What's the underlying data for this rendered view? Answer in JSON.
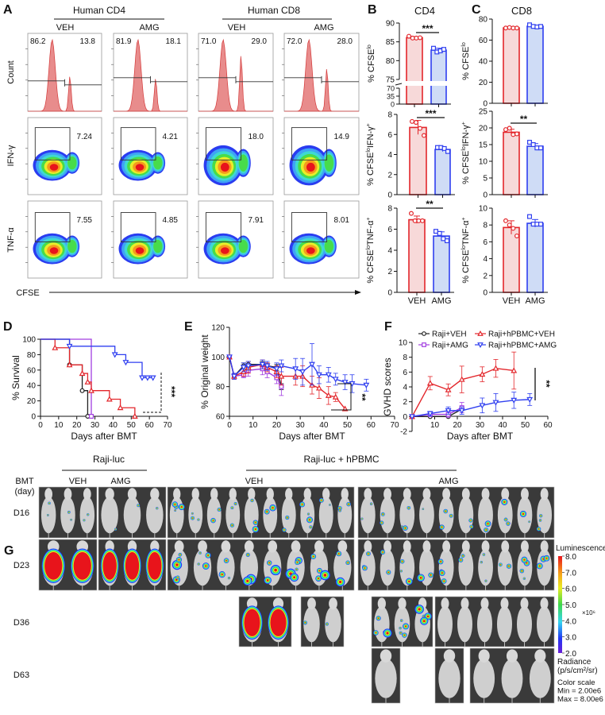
{
  "panel_letters": {
    "A": "A",
    "B": "B",
    "C": "C",
    "D": "D",
    "E": "E",
    "F": "F",
    "G": "G"
  },
  "panel_a": {
    "groups": [
      "Human CD4",
      "Human CD8"
    ],
    "conditions": [
      "VEH",
      "AMG",
      "VEH",
      "AMG"
    ],
    "row_labels": [
      "Count",
      "IFN-γ",
      "TNF-α"
    ],
    "x_axis_label": "CFSE",
    "histogram_gates": [
      [
        "86.2",
        "13.8"
      ],
      [
        "81.9",
        "18.1"
      ],
      [
        "71.0",
        "29.0"
      ],
      [
        "72.0",
        "28.0"
      ]
    ],
    "ifng_gates": [
      "7.24",
      "4.21",
      "18.0",
      "14.9"
    ],
    "tnfa_gates": [
      "7.55",
      "4.85",
      "7.91",
      "8.01"
    ]
  },
  "panel_b": {
    "title": "CD4"
  },
  "panel_c": {
    "title": "CD8"
  },
  "colors": {
    "veh_red": "#e3262b",
    "veh_fill": "#f7d9d9",
    "amg_blue": "#2f3ff0",
    "amg_fill": "#cfdcf6",
    "purple": "#a23fe0",
    "black": "#222222"
  },
  "chart_data": [
    {
      "type": "bar",
      "panel": "B",
      "categories": [
        "VEH",
        "AMG"
      ],
      "values": [
        86.1,
        82.8
      ],
      "sd": [
        0.3,
        0.5
      ],
      "points": [
        [
          86.5,
          86.0,
          86.0,
          86.1
        ],
        [
          83.3,
          82.3,
          82.6,
          83.0
        ]
      ],
      "ylabel": [
        {
          "t": "% CFSE"
        },
        {
          "t": "lo",
          "sup": true
        }
      ],
      "ylim": [
        75,
        90
      ],
      "yticks": [
        75,
        80,
        85,
        90
      ],
      "broken_axis_lower_ticks": [
        0,
        35,
        70
      ],
      "significance": "***"
    },
    {
      "type": "bar",
      "panel": "B",
      "categories": [
        "VEH",
        "AMG"
      ],
      "values": [
        6.7,
        4.5
      ],
      "sd": [
        0.7,
        0.2
      ],
      "points": [
        [
          7.3,
          7.2,
          6.6,
          5.9
        ],
        [
          4.7,
          4.7,
          4.6,
          4.3
        ]
      ],
      "ylabel": [
        {
          "t": "% CFSE"
        },
        {
          "t": "lo",
          "sup": true
        },
        {
          "t": "IFN-γ"
        },
        {
          "t": "+",
          "sup": true
        }
      ],
      "ylim": [
        0,
        8
      ],
      "yticks": [
        0,
        2,
        4,
        6,
        8
      ],
      "significance": "***"
    },
    {
      "type": "bar",
      "panel": "B",
      "categories": [
        "VEH",
        "AMG"
      ],
      "values": [
        6.9,
        5.35
      ],
      "sd": [
        0.35,
        0.4
      ],
      "points": [
        [
          7.5,
          6.8,
          6.8,
          6.8
        ],
        [
          5.8,
          5.6,
          5.1,
          4.9
        ]
      ],
      "ylabel": [
        {
          "t": "% CFSE"
        },
        {
          "t": "lo",
          "sup": true
        },
        {
          "t": "TNF-α"
        },
        {
          "t": "+",
          "sup": true
        }
      ],
      "ylim": [
        0,
        8
      ],
      "yticks": [
        0,
        2,
        4,
        6,
        8
      ],
      "significance": "**"
    },
    {
      "type": "bar",
      "panel": "C",
      "categories": [
        "VEH",
        "AMG"
      ],
      "values": [
        71.6,
        73.2
      ],
      "sd": [
        0.3,
        0.9
      ],
      "points": [
        [
          71.5,
          72.0,
          71.5,
          71.5
        ],
        [
          74.5,
          73.0,
          72.5,
          73.0
        ]
      ],
      "ylabel": [
        {
          "t": "% CFSE"
        },
        {
          "t": "lo",
          "sup": true
        }
      ],
      "ylim": [
        0,
        80
      ],
      "yticks": [
        0,
        20,
        40,
        60,
        80
      ],
      "significance": ""
    },
    {
      "type": "bar",
      "panel": "C",
      "categories": [
        "VEH",
        "AMG"
      ],
      "values": [
        18.7,
        14.5
      ],
      "sd": [
        0.9,
        0.8
      ],
      "points": [
        [
          19.5,
          19.9,
          18.0,
          18.2
        ],
        [
          15.7,
          15.0,
          14.0,
          14.0
        ]
      ],
      "ylabel": [
        {
          "t": "% CFSE"
        },
        {
          "t": "lo",
          "sup": true
        },
        {
          "t": "IFN-γ"
        },
        {
          "t": "+",
          "sup": true
        }
      ],
      "ylim": [
        0,
        25
      ],
      "yticks": [
        0,
        5,
        10,
        15,
        20,
        25
      ],
      "significance": "**"
    },
    {
      "type": "bar",
      "panel": "C",
      "categories": [
        "VEH",
        "AMG"
      ],
      "values": [
        7.7,
        8.2
      ],
      "sd": [
        0.8,
        0.45
      ],
      "points": [
        [
          8.5,
          8.0,
          7.6,
          6.7
        ],
        [
          9.0,
          8.1,
          8.1,
          8.1
        ]
      ],
      "ylabel": [
        {
          "t": "% CFSE"
        },
        {
          "t": "lo",
          "sup": true
        },
        {
          "t": "TNF-α"
        },
        {
          "t": "+",
          "sup": true
        }
      ],
      "ylim": [
        0,
        10
      ],
      "yticks": [
        0,
        2,
        4,
        6,
        8,
        10
      ],
      "significance": ""
    },
    {
      "type": "line",
      "subtype": "kaplan-meier",
      "panel": "D",
      "xlabel": "Days after BMT",
      "ylabel": "% Survival",
      "xlim": [
        0,
        70
      ],
      "xticks": [
        0,
        10,
        20,
        30,
        40,
        50,
        60,
        70
      ],
      "ylim": [
        0,
        100
      ],
      "yticks": [
        0,
        20,
        40,
        60,
        80,
        100
      ],
      "series": [
        {
          "name": "Raji+VEH",
          "color": "#222222",
          "marker": "circle",
          "x": [
            0,
            16,
            23,
            26
          ],
          "y": [
            100,
            66.7,
            33.3,
            0
          ],
          "censored": []
        },
        {
          "name": "Raji+AMG",
          "color": "#a23fe0",
          "marker": "square",
          "x": [
            0,
            28
          ],
          "y": [
            100,
            0
          ],
          "censored": []
        },
        {
          "name": "Raji+hPBMC+VEH",
          "color": "#e3262b",
          "marker": "triangle-up",
          "x": [
            0,
            8,
            16,
            23,
            26,
            28,
            38,
            44,
            52
          ],
          "y": [
            100,
            88.9,
            66.7,
            55.6,
            44.4,
            33.3,
            22.2,
            11.1,
            0
          ],
          "censored": []
        },
        {
          "name": "Raji+hPBMC+AMG",
          "color": "#2f3ff0",
          "marker": "triangle-down",
          "x": [
            0,
            16,
            41,
            47,
            56
          ],
          "y": [
            100,
            90.9,
            80,
            70,
            50
          ],
          "censored": [
            59,
            62
          ]
        }
      ],
      "significance": "***"
    },
    {
      "type": "line",
      "panel": "E",
      "xlabel": "Days after BMT",
      "ylabel": "% Original weight",
      "xlim": [
        0,
        70
      ],
      "xticks": [
        0,
        10,
        20,
        30,
        40,
        50,
        60,
        70
      ],
      "ylim": [
        60,
        120
      ],
      "yticks": [
        60,
        80,
        100,
        120
      ],
      "series": [
        {
          "name": "Raji+VEH",
          "color": "#222222",
          "marker": "circle",
          "x": [
            0,
            2,
            6,
            8,
            14,
            16,
            20,
            22
          ],
          "y": [
            100,
            87,
            94,
            95,
            95,
            94,
            93,
            80
          ],
          "sd": [
            0,
            1,
            2,
            2,
            2,
            2,
            2,
            2
          ]
        },
        {
          "name": "Raji+AMG",
          "color": "#a23fe0",
          "marker": "square",
          "x": [
            0,
            2,
            6,
            8,
            14,
            16,
            20,
            22
          ],
          "y": [
            100,
            87,
            88,
            91,
            92,
            90,
            86,
            80
          ],
          "sd": [
            0,
            2,
            2,
            4,
            4,
            4,
            4,
            6
          ]
        },
        {
          "name": "Raji+hPBMC+VEH",
          "color": "#e3262b",
          "marker": "triangle-up",
          "x": [
            0,
            2,
            6,
            8,
            14,
            16,
            20,
            22,
            28,
            31,
            35,
            38,
            42,
            45,
            49
          ],
          "y": [
            100,
            87,
            90,
            93,
            95,
            93,
            90,
            87,
            87,
            87,
            81,
            79,
            74,
            73,
            65
          ],
          "sd": [
            0,
            2,
            3,
            4,
            3,
            3,
            4,
            6,
            6,
            7,
            6,
            7,
            6,
            3,
            0
          ]
        },
        {
          "name": "Raji+hPBMC+AMG",
          "color": "#2f3ff0",
          "marker": "triangle-down",
          "x": [
            0,
            2,
            6,
            8,
            14,
            16,
            20,
            22,
            28,
            31,
            35,
            38,
            42,
            45,
            49,
            52,
            58
          ],
          "y": [
            100,
            87,
            93,
            94,
            95,
            94,
            92,
            94,
            92,
            90,
            95,
            88,
            88,
            85,
            83,
            82,
            81
          ],
          "sd": [
            0,
            2,
            3,
            3,
            3,
            3,
            4,
            4,
            7,
            9,
            14,
            6,
            5,
            4,
            5,
            6,
            4
          ]
        }
      ],
      "significance": "**"
    },
    {
      "type": "line",
      "panel": "F",
      "xlabel": "Days after BMT",
      "ylabel": "GVHD scores",
      "xlim": [
        0,
        60
      ],
      "xticks": [
        10,
        20,
        30,
        40,
        50,
        60
      ],
      "ylim": [
        -2,
        10
      ],
      "yticks": [
        -2,
        0,
        2,
        4,
        6,
        8,
        10
      ],
      "legend": "top",
      "series": [
        {
          "name": "Raji+VEH",
          "color": "#222222",
          "marker": "circle",
          "x": [
            0,
            8,
            16,
            22
          ],
          "y": [
            0,
            0,
            0,
            1.0
          ],
          "sd": [
            0,
            0,
            0,
            0.2
          ]
        },
        {
          "name": "Raji+AMG",
          "color": "#a23fe0",
          "marker": "square",
          "x": [
            0,
            8,
            16,
            22
          ],
          "y": [
            0,
            0.3,
            0.3,
            1.2
          ],
          "sd": [
            0,
            0.3,
            0.4,
            0.7
          ]
        },
        {
          "name": "Raji+hPBMC+VEH",
          "color": "#e3262b",
          "marker": "triangle-up",
          "x": [
            0,
            8,
            16,
            22,
            31,
            37,
            45
          ],
          "y": [
            0,
            4.5,
            3.6,
            5.0,
            5.7,
            6.5,
            6.2
          ],
          "sd": [
            0,
            0.9,
            0.8,
            1.8,
            1.0,
            1.2,
            2.5
          ]
        },
        {
          "name": "Raji+hPBMC+AMG",
          "color": "#2f3ff0",
          "marker": "triangle-down",
          "x": [
            0,
            8,
            16,
            22,
            31,
            37,
            45,
            52
          ],
          "y": [
            0,
            0.4,
            0.8,
            0.8,
            1.5,
            1.9,
            2.2,
            2.3
          ],
          "sd": [
            0,
            0.3,
            0.5,
            0.5,
            1.0,
            1.2,
            1.1,
            0.8
          ]
        }
      ],
      "significance": "**"
    }
  ],
  "panel_g": {
    "groups": [
      "Raji-luc",
      "Raji-luc + hPBMC"
    ],
    "conditions": [
      "VEH",
      "AMG",
      "VEH",
      "AMG"
    ],
    "row_header": [
      "BMT",
      "(day)"
    ],
    "rows": [
      "D16",
      "D23",
      "D36",
      "D63"
    ],
    "colorbar": {
      "title": "Luminescence",
      "ticks": [
        "8.0",
        "7.0",
        "6.0",
        "5.0",
        "4.0",
        "3.0",
        "2.0"
      ],
      "multiplier": "×10⁶",
      "unit_lines": [
        "Radiance",
        "(p/s/cm²/sr)"
      ],
      "scale_lines": [
        "Color scale",
        "Min = 2.00e6",
        "Max = 8.00e6"
      ]
    }
  }
}
